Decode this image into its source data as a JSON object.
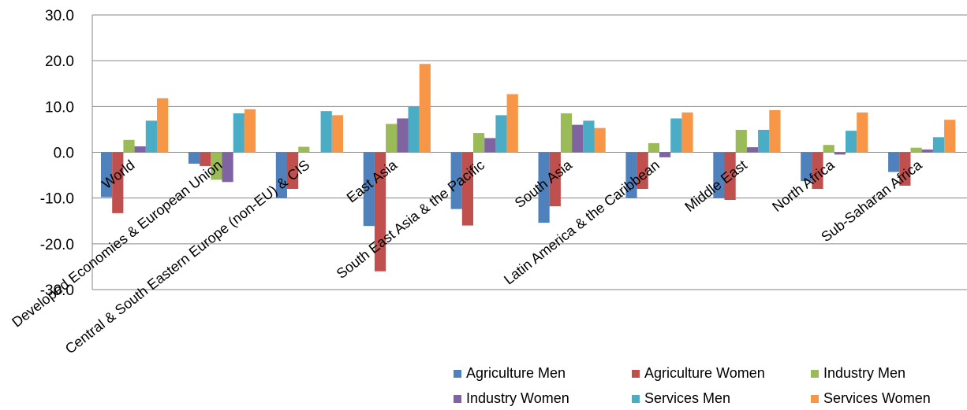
{
  "chart_data": {
    "type": "bar",
    "ylim": [
      -30,
      30
    ],
    "yticks": [
      "30.0",
      "20.0",
      "10.0",
      "0.0",
      "-10.0",
      "-20.0",
      "-30.0"
    ],
    "grid": true,
    "legend_position": "bottom-right",
    "categories": [
      "World",
      "Developed Economies & European Union",
      "Central & South Eastern Europe (non-EU) & CIS",
      "East Asia",
      "South East Asia & the Pacific",
      "South Asia",
      "Latin America & the Caribbean",
      "Middle East",
      "North Africa",
      "Sub-Saharan Africa"
    ],
    "series": [
      {
        "name": "Agriculture Men",
        "color": "#4f81bd",
        "values": [
          -9.8,
          -2.5,
          -10.0,
          -16.1,
          -12.4,
          -15.4,
          -10.0,
          -10.0,
          -6.3,
          -4.3
        ]
      },
      {
        "name": "Agriculture Women",
        "color": "#c0504d",
        "values": [
          -13.3,
          -3.0,
          -8.0,
          -26.0,
          -16.0,
          -11.8,
          -8.0,
          -10.4,
          -8.0,
          -7.3
        ]
      },
      {
        "name": "Industry Men",
        "color": "#9bbb59",
        "values": [
          2.7,
          -6.0,
          1.2,
          6.2,
          4.2,
          8.5,
          2.0,
          4.9,
          1.6,
          1.0
        ]
      },
      {
        "name": "Industry Women",
        "color": "#8064a2",
        "values": [
          1.3,
          -6.5,
          0.0,
          7.4,
          3.1,
          6.0,
          -1.1,
          1.1,
          -0.5,
          0.6
        ]
      },
      {
        "name": "Services Men",
        "color": "#4bacc6",
        "values": [
          6.9,
          8.5,
          9.0,
          10.0,
          8.1,
          6.9,
          7.4,
          4.9,
          4.7,
          3.3
        ]
      },
      {
        "name": "Services Women",
        "color": "#f79646",
        "values": [
          11.8,
          9.4,
          8.1,
          19.3,
          12.7,
          5.3,
          8.7,
          9.2,
          8.7,
          7.1
        ]
      }
    ]
  }
}
